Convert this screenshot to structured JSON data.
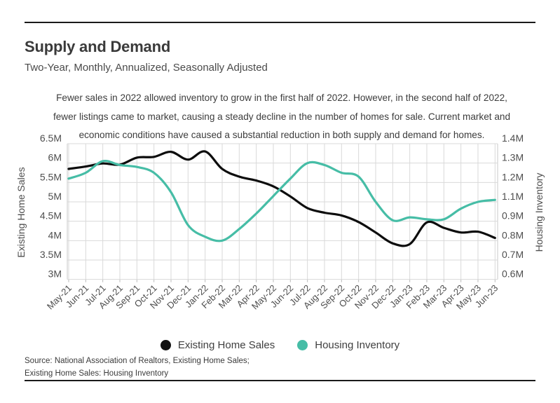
{
  "page": {
    "title": "Supply and Demand",
    "subtitle": "Two-Year, Monthly, Annualized, Seasonally Adjusted",
    "description": "Fewer sales in 2022 allowed inventory to grow in the first half of 2022. However, in the second half of 2022, fewer listings came to market, causing a steady decline in the number of homes for sale. Current market and economic conditions have caused a substantial reduction in both supply and demand for homes.",
    "source_line1": "Source:  National Association of Realtors, Existing Home Sales;",
    "source_line2": "Existing Home Sales: Housing Inventory"
  },
  "legend": {
    "items": [
      {
        "label": "Existing Home Sales",
        "color": "#111111"
      },
      {
        "label": "Housing Inventory",
        "color": "#46bda6"
      }
    ]
  },
  "chart_data": {
    "type": "line",
    "title": "Supply and Demand",
    "grid": true,
    "legend_position": "bottom",
    "categories": [
      "May-21",
      "Jun-21",
      "Jul-21",
      "Aug-21",
      "Sep-21",
      "Oct-21",
      "Nov-21",
      "Dec-21",
      "Jan-22",
      "Feb-22",
      "Mar-22",
      "Apr-22",
      "May-22",
      "Jun-22",
      "Jul-22",
      "Aug-22",
      "Sep-22",
      "Oct-22",
      "Nov-22",
      "Dec-22",
      "Jan-23",
      "Feb-23",
      "Mar-23",
      "Apr-23",
      "May-23",
      "Jun-23"
    ],
    "series": [
      {
        "name": "Existing Home Sales",
        "axis": "left",
        "color": "#0d0d0d",
        "unit": "millions",
        "values": [
          5.85,
          5.91,
          5.99,
          5.96,
          6.14,
          6.16,
          6.29,
          6.09,
          6.3,
          5.85,
          5.65,
          5.55,
          5.4,
          5.14,
          4.84,
          4.72,
          4.65,
          4.48,
          4.21,
          3.93,
          3.91,
          4.47,
          4.33,
          4.21,
          4.23,
          4.07
        ]
      },
      {
        "name": "Housing Inventory",
        "axis": "right",
        "color": "#46bda6",
        "unit": "millions",
        "values": [
          1.22,
          1.25,
          1.31,
          1.29,
          1.28,
          1.25,
          1.15,
          0.88,
          0.82,
          0.8,
          0.86,
          0.98,
          1.13,
          1.22,
          1.3,
          1.29,
          1.25,
          1.23,
          1.1,
          0.91,
          0.94,
          0.92,
          0.92,
          1.03,
          1.1,
          1.11
        ]
      }
    ],
    "left_axis": {
      "label": "Existing Home Sales",
      "tick_labels": [
        "6.5M",
        "6M",
        "5.5M",
        "5M",
        "4.5M",
        "4M",
        "3.5M",
        "3M"
      ],
      "tick_values": [
        6.5,
        6.0,
        5.5,
        5.0,
        4.5,
        4.0,
        3.5,
        3.0
      ],
      "range": [
        3.0,
        6.5
      ]
    },
    "right_axis": {
      "label": "Housing Inventory",
      "tick_labels": [
        "1.4M",
        "1.3M",
        "1.2M",
        "1.1M",
        "0.9M",
        "0.8M",
        "0.7M",
        "0.6M"
      ],
      "tick_values": [
        1.4,
        1.3,
        1.2,
        1.1,
        0.9,
        0.8,
        0.7,
        0.6
      ],
      "note": "right axis tick labels are paired one-per-gridline as printed (1.0M not shown)"
    },
    "style": {
      "gridline_color": "#d9d9d9",
      "tick_text_color": "#4e4e4e",
      "line_width": 3.2
    }
  }
}
